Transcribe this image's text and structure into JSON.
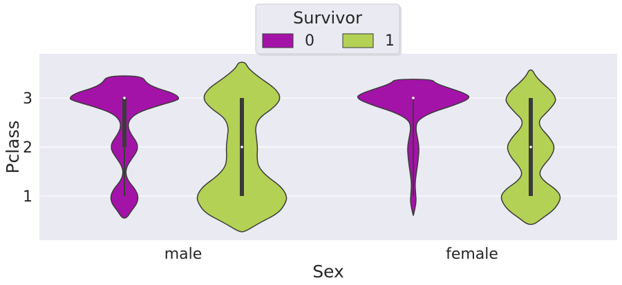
{
  "chart_data": {
    "type": "violin",
    "xlabel": "Sex",
    "ylabel": "Pclass",
    "categories": [
      "male",
      "female"
    ],
    "yticks": [
      1,
      2,
      3
    ],
    "ylim": [
      0.1,
      3.9
    ],
    "grid": true,
    "legend": {
      "title": "Survivor",
      "placement": "top-center",
      "entries": [
        "0",
        "1"
      ]
    },
    "series": [
      {
        "name": "0",
        "color": "#a413a8",
        "violins": [
          {
            "category": "male",
            "median": 3,
            "q1": 2,
            "q3": 3,
            "min": 1,
            "max": 3,
            "extent": [
              0.55,
              3.45
            ],
            "density_profile": [
              [
                0.55,
                0.04
              ],
              [
                0.7,
                0.12
              ],
              [
                0.85,
                0.22
              ],
              [
                1.0,
                0.24
              ],
              [
                1.15,
                0.18
              ],
              [
                1.3,
                0.07
              ],
              [
                1.45,
                0.02
              ],
              [
                1.6,
                0.04
              ],
              [
                1.75,
                0.12
              ],
              [
                1.9,
                0.21
              ],
              [
                2.0,
                0.23
              ],
              [
                2.1,
                0.21
              ],
              [
                2.25,
                0.12
              ],
              [
                2.4,
                0.06
              ],
              [
                2.55,
                0.08
              ],
              [
                2.7,
                0.22
              ],
              [
                2.85,
                0.6
              ],
              [
                2.95,
                0.9
              ],
              [
                3.0,
                0.95
              ],
              [
                3.1,
                0.84
              ],
              [
                3.2,
                0.55
              ],
              [
                3.3,
                0.38
              ],
              [
                3.45,
                0.3
              ]
            ]
          },
          {
            "category": "female",
            "median": 3,
            "q1": 3,
            "q3": 3,
            "min": 1,
            "max": 3,
            "extent": [
              0.6,
              3.38
            ],
            "density_profile": [
              [
                0.6,
                0.0
              ],
              [
                0.75,
                0.03
              ],
              [
                0.9,
                0.05
              ],
              [
                1.05,
                0.04
              ],
              [
                1.25,
                0.03
              ],
              [
                1.45,
                0.05
              ],
              [
                1.6,
                0.07
              ],
              [
                1.8,
                0.09
              ],
              [
                2.0,
                0.1
              ],
              [
                2.2,
                0.07
              ],
              [
                2.4,
                0.04
              ],
              [
                2.55,
                0.08
              ],
              [
                2.7,
                0.3
              ],
              [
                2.85,
                0.7
              ],
              [
                3.0,
                1.0
              ],
              [
                3.1,
                0.88
              ],
              [
                3.2,
                0.62
              ],
              [
                3.3,
                0.38
              ],
              [
                3.38,
                0.32
              ]
            ]
          }
        ]
      },
      {
        "name": "1",
        "color": "#b3d155",
        "violins": [
          {
            "category": "male",
            "median": 2,
            "q1": 1,
            "q3": 3,
            "min": 1,
            "max": 3,
            "extent": [
              0.27,
              3.73
            ],
            "density_profile": [
              [
                0.27,
                0.05
              ],
              [
                0.45,
                0.3
              ],
              [
                0.65,
                0.63
              ],
              [
                0.85,
                0.75
              ],
              [
                1.0,
                0.78
              ],
              [
                1.2,
                0.67
              ],
              [
                1.4,
                0.43
              ],
              [
                1.6,
                0.28
              ],
              [
                1.8,
                0.26
              ],
              [
                2.0,
                0.27
              ],
              [
                2.2,
                0.25
              ],
              [
                2.4,
                0.23
              ],
              [
                2.6,
                0.3
              ],
              [
                2.8,
                0.55
              ],
              [
                3.0,
                0.68
              ],
              [
                3.2,
                0.57
              ],
              [
                3.4,
                0.32
              ],
              [
                3.6,
                0.11
              ],
              [
                3.73,
                0.06
              ]
            ]
          },
          {
            "category": "female",
            "median": 2,
            "q1": 1,
            "q3": 3,
            "min": 1,
            "max": 3,
            "extent": [
              0.42,
              3.57
            ],
            "density_profile": [
              [
                0.42,
                0.06
              ],
              [
                0.55,
                0.2
              ],
              [
                0.7,
                0.38
              ],
              [
                0.85,
                0.48
              ],
              [
                1.0,
                0.52
              ],
              [
                1.15,
                0.42
              ],
              [
                1.3,
                0.23
              ],
              [
                1.45,
                0.14
              ],
              [
                1.6,
                0.2
              ],
              [
                1.8,
                0.35
              ],
              [
                2.0,
                0.42
              ],
              [
                2.2,
                0.32
              ],
              [
                2.4,
                0.16
              ],
              [
                2.55,
                0.14
              ],
              [
                2.7,
                0.27
              ],
              [
                2.9,
                0.42
              ],
              [
                3.0,
                0.43
              ],
              [
                3.15,
                0.35
              ],
              [
                3.3,
                0.2
              ],
              [
                3.45,
                0.08
              ],
              [
                3.57,
                0.03
              ]
            ]
          }
        ]
      }
    ]
  }
}
